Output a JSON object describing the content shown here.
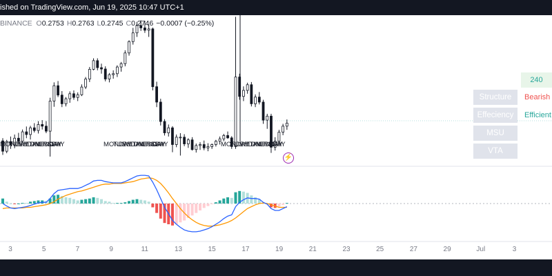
{
  "banner": {
    "text": "ished on TradingView.com, Jun 19, 2025 10:47 UTC+1"
  },
  "ohlc": {
    "symbol": "BINANCE",
    "o_label": "O",
    "o": "0.2753",
    "h_label": "H",
    "h": "0.2763",
    "l_label": "L",
    "l": "0.2745",
    "c_label": "C",
    "c": "0.2746",
    "change": "−0.0007 (−0.25%)"
  },
  "panel": {
    "timeframe": "240",
    "rows": [
      {
        "label": "Structure",
        "value": "Bearish",
        "value_color": "#ef5350"
      },
      {
        "label": "Effeciency",
        "value": "Efficient",
        "value_color": "#26a69a"
      },
      {
        "label": "MSU",
        "value": ""
      },
      {
        "label": "VTA",
        "value": ""
      }
    ]
  },
  "day_labels": [
    {
      "text": "MONDAY",
      "group": 1
    },
    {
      "text": "TUESDAY",
      "group": 1
    },
    {
      "text": "WEDNESDAY",
      "group": 1
    },
    {
      "text": "THURSDAY",
      "group": 1
    },
    {
      "text": "FRIDAY",
      "group": 1
    },
    {
      "text": "MONDAY",
      "group": 2
    },
    {
      "text": "TUESDAY",
      "group": 2
    },
    {
      "text": "WEDNESDAY",
      "group": 2
    },
    {
      "text": "THURSDAY",
      "group": 2
    },
    {
      "text": "FRIDAY",
      "group": 2
    },
    {
      "text": "MONDAY",
      "group": 3
    },
    {
      "text": "TUESDAY",
      "group": 3
    },
    {
      "text": "WEDNESDAY",
      "group": 3
    },
    {
      "text": "THURSDAY",
      "group": 3
    },
    {
      "text": "FRIDAY",
      "group": 3
    }
  ],
  "x_axis_ticks": [
    "3",
    "5",
    "7",
    "9",
    "11",
    "13",
    "15",
    "17",
    "19",
    "21",
    "23",
    "25",
    "27",
    "29",
    "Jul",
    "3"
  ],
  "colors": {
    "up": "#131722",
    "down": "#131722",
    "macd": "#2962ff",
    "signal": "#ff9800",
    "hist_pos_strong": "#26a69a",
    "hist_pos_weak": "#b2dfdb",
    "hist_neg_strong": "#ef5350",
    "hist_neg_weak": "#ffcdd2"
  },
  "chart_data": {
    "type": "candlestick",
    "x_start_day": 2,
    "x_unit": "day of June 2025",
    "bar_interval_hours": 4,
    "y_unit": "price",
    "ylim": [
      0.2355,
      0.2805
    ],
    "candles": [
      [
        0.2429,
        0.2437,
        0.2387,
        0.2398
      ],
      [
        0.2398,
        0.2432,
        0.2392,
        0.2427
      ],
      [
        0.2427,
        0.2442,
        0.2405,
        0.2417
      ],
      [
        0.2417,
        0.2448,
        0.2407,
        0.2437
      ],
      [
        0.2437,
        0.2453,
        0.2418,
        0.2428
      ],
      [
        0.2428,
        0.2463,
        0.2425,
        0.2456
      ],
      [
        0.2456,
        0.2472,
        0.2437,
        0.2448
      ],
      [
        0.2448,
        0.2474,
        0.2433,
        0.2468
      ],
      [
        0.2468,
        0.2482,
        0.2454,
        0.246
      ],
      [
        0.246,
        0.2488,
        0.2451,
        0.2478
      ],
      [
        0.2478,
        0.2491,
        0.2463,
        0.2473
      ],
      [
        0.2473,
        0.2488,
        0.2452,
        0.2458
      ],
      [
        0.2458,
        0.2558,
        0.2382,
        0.2548
      ],
      [
        0.2548,
        0.2604,
        0.2531,
        0.2594
      ],
      [
        0.2594,
        0.2608,
        0.256,
        0.2566
      ],
      [
        0.2566,
        0.2578,
        0.253,
        0.254
      ],
      [
        0.254,
        0.256,
        0.2532,
        0.2555
      ],
      [
        0.2555,
        0.2577,
        0.2543,
        0.257
      ],
      [
        0.257,
        0.258,
        0.2552,
        0.2559
      ],
      [
        0.2559,
        0.2574,
        0.2548,
        0.2567
      ],
      [
        0.2567,
        0.2598,
        0.2563,
        0.259
      ],
      [
        0.259,
        0.262,
        0.2584,
        0.2614
      ],
      [
        0.2614,
        0.265,
        0.2605,
        0.2643
      ],
      [
        0.2643,
        0.2676,
        0.264,
        0.2669
      ],
      [
        0.2669,
        0.2676,
        0.264,
        0.2648
      ],
      [
        0.2648,
        0.266,
        0.263,
        0.2644
      ],
      [
        0.2644,
        0.2652,
        0.2607,
        0.2614
      ],
      [
        0.2614,
        0.2632,
        0.2604,
        0.2627
      ],
      [
        0.2627,
        0.264,
        0.2615,
        0.263
      ],
      [
        0.263,
        0.2655,
        0.262,
        0.265
      ],
      [
        0.265,
        0.2665,
        0.2636,
        0.266
      ],
      [
        0.266,
        0.27,
        0.2652,
        0.2692
      ],
      [
        0.2692,
        0.273,
        0.2684,
        0.2726
      ],
      [
        0.2726,
        0.2767,
        0.2717,
        0.2752
      ],
      [
        0.2752,
        0.2785,
        0.274,
        0.2774
      ],
      [
        0.2774,
        0.279,
        0.2758,
        0.2767
      ],
      [
        0.2767,
        0.2788,
        0.2752,
        0.276
      ],
      [
        0.276,
        0.2776,
        0.274,
        0.2764
      ],
      [
        0.2764,
        0.2768,
        0.258,
        0.2591
      ],
      [
        0.2591,
        0.2606,
        0.253,
        0.2545
      ],
      [
        0.2545,
        0.2555,
        0.2475,
        0.2487
      ],
      [
        0.2487,
        0.2494,
        0.2445,
        0.2453
      ],
      [
        0.2453,
        0.2478,
        0.2442,
        0.2468
      ],
      [
        0.2468,
        0.2473,
        0.2395,
        0.2418
      ],
      [
        0.2418,
        0.2448,
        0.241,
        0.244
      ],
      [
        0.244,
        0.2452,
        0.2385,
        0.244
      ],
      [
        0.244,
        0.2449,
        0.2413,
        0.242
      ],
      [
        0.242,
        0.2437,
        0.2408,
        0.2432
      ],
      [
        0.2432,
        0.244,
        0.24,
        0.2403
      ],
      [
        0.2403,
        0.2421,
        0.2394,
        0.2415
      ],
      [
        0.2415,
        0.2425,
        0.2402,
        0.2418
      ],
      [
        0.2418,
        0.243,
        0.2401,
        0.2408
      ],
      [
        0.2408,
        0.2422,
        0.2398,
        0.2412
      ],
      [
        0.2412,
        0.2421,
        0.2405,
        0.2418
      ],
      [
        0.2418,
        0.2432,
        0.2412,
        0.2428
      ],
      [
        0.2428,
        0.2442,
        0.2418,
        0.2435
      ],
      [
        0.2435,
        0.245,
        0.2428,
        0.2445
      ],
      [
        0.2445,
        0.2457,
        0.2435,
        0.2438
      ],
      [
        0.2438,
        0.2443,
        0.2405,
        0.2412
      ],
      [
        0.2412,
        0.28,
        0.2405,
        0.262
      ],
      [
        0.262,
        0.263,
        0.2552,
        0.2562
      ],
      [
        0.2562,
        0.2592,
        0.2548,
        0.258
      ],
      [
        0.258,
        0.2603,
        0.257,
        0.2597
      ],
      [
        0.2597,
        0.2605,
        0.2532,
        0.254
      ],
      [
        0.254,
        0.2568,
        0.253,
        0.256
      ],
      [
        0.256,
        0.2575,
        0.2538,
        0.2545
      ],
      [
        0.2545,
        0.2552,
        0.248,
        0.2491
      ],
      [
        0.2491,
        0.251,
        0.2465,
        0.2503
      ],
      [
        0.2503,
        0.251,
        0.2393,
        0.241
      ],
      [
        0.241,
        0.244,
        0.24,
        0.2428
      ],
      [
        0.2428,
        0.2462,
        0.242,
        0.2455
      ],
      [
        0.2455,
        0.248,
        0.2446,
        0.2473
      ],
      [
        0.2473,
        0.2493,
        0.2462,
        0.2482
      ]
    ],
    "macd_ylim": [
      -0.0055,
      0.0055
    ],
    "macd": [
      0.0,
      -0.0004,
      -0.0007,
      -0.0008,
      -0.0007,
      -0.0006,
      -0.0005,
      -0.0003,
      -0.0001,
      0.0001,
      0.0002,
      0.0002,
      0.0008,
      0.0016,
      0.0021,
      0.0022,
      0.0023,
      0.0024,
      0.0024,
      0.0024,
      0.0026,
      0.0029,
      0.0032,
      0.0036,
      0.0037,
      0.0037,
      0.0035,
      0.0034,
      0.0033,
      0.0033,
      0.0033,
      0.0035,
      0.0038,
      0.0041,
      0.0044,
      0.0045,
      0.0045,
      0.0044,
      0.0034,
      0.0022,
      0.0008,
      -0.0006,
      -0.0016,
      -0.0027,
      -0.0033,
      -0.0038,
      -0.0042,
      -0.0044,
      -0.0045,
      -0.0045,
      -0.0044,
      -0.0042,
      -0.004,
      -0.0037,
      -0.0033,
      -0.0029,
      -0.0024,
      -0.002,
      -0.0018,
      -0.0005,
      0.0002,
      0.0006,
      0.0009,
      0.0008,
      0.0008,
      0.0007,
      0.0002,
      -0.0001,
      -0.0008,
      -0.0011,
      -0.0011,
      -0.0008,
      -0.0005
    ],
    "signal": [
      -0.0008,
      -0.0007,
      -0.0007,
      -0.0007,
      -0.0007,
      -0.0007,
      -0.0006,
      -0.0006,
      -0.0005,
      -0.0004,
      -0.0003,
      -0.0002,
      0.0,
      0.0003,
      0.0007,
      0.001,
      0.0013,
      0.0015,
      0.0017,
      0.0019,
      0.002,
      0.0022,
      0.0024,
      0.0026,
      0.0028,
      0.003,
      0.0031,
      0.0031,
      0.0032,
      0.0032,
      0.0032,
      0.0033,
      0.0034,
      0.0035,
      0.0037,
      0.0039,
      0.004,
      0.0041,
      0.004,
      0.0037,
      0.0032,
      0.0025,
      0.0017,
      0.0008,
      0.0,
      -0.0008,
      -0.0015,
      -0.0021,
      -0.0026,
      -0.003,
      -0.0033,
      -0.0035,
      -0.0036,
      -0.0036,
      -0.0035,
      -0.0034,
      -0.0032,
      -0.003,
      -0.0027,
      -0.0023,
      -0.0018,
      -0.0013,
      -0.0008,
      -0.0005,
      -0.0002,
      0.0,
      0.0001,
      0.0,
      -0.0002,
      -0.0004,
      -0.0006,
      -0.0006,
      -0.0006
    ]
  }
}
